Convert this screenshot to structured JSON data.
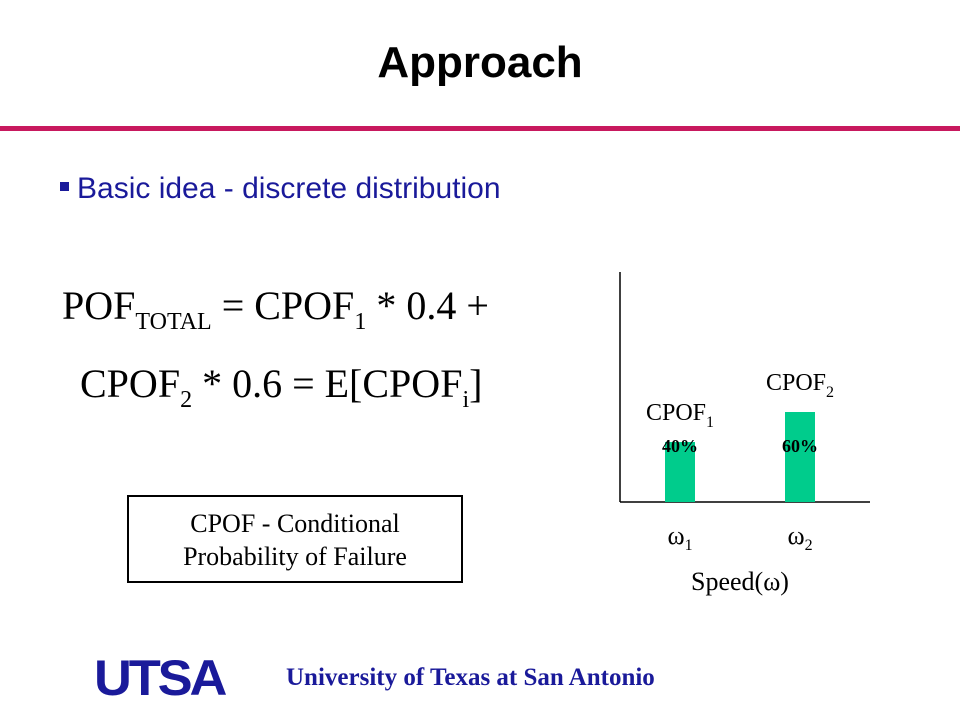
{
  "slide": {
    "title": "Approach",
    "bullet": "Basic idea - discrete distribution",
    "equation": {
      "line1": {
        "a": "POF",
        "a_sub": "TOTAL",
        "b": " = CPOF",
        "b_sub": "1",
        "c": " * 0.4 +"
      },
      "line2": {
        "a": "CPOF",
        "a_sub": "2",
        "b": " * 0.6 = E[CPOF",
        "b_sub": "i",
        "c": "]"
      }
    },
    "definition": {
      "line1": "CPOF - Conditional",
      "line2": "Probability of Failure"
    },
    "footer": {
      "logo": "UTSA",
      "institution": "University of Texas at San Antonio"
    }
  },
  "colors": {
    "accent_rule": "#c8195e",
    "bar": "#00cc8c",
    "footer_text": "#1a1a9a"
  },
  "chart_data": {
    "type": "bar",
    "categories": [
      {
        "base": "ω",
        "sub": "1"
      },
      {
        "base": "ω",
        "sub": "2"
      }
    ],
    "values": [
      40,
      60
    ],
    "value_labels": [
      "40%",
      "60%"
    ],
    "series_labels": [
      {
        "base": "CPOF",
        "sub": "1"
      },
      {
        "base": "CPOF",
        "sub": "2"
      }
    ],
    "xlabel": "Speed(ω)",
    "ylabel": "",
    "ylim": [
      0,
      100
    ],
    "grid": false
  }
}
